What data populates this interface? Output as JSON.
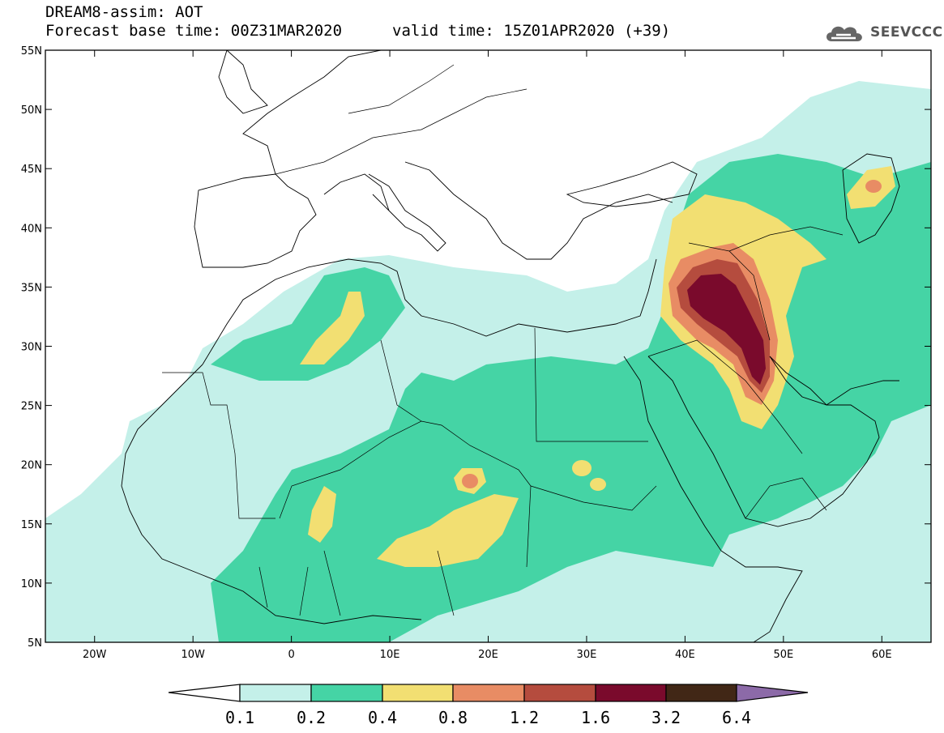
{
  "header": {
    "title": "DREAM8-assim: AOT",
    "base_time": "Forecast base time: 00Z31MAR2020",
    "valid_time": "valid time: 15Z01APR2020 (+39)"
  },
  "logo": {
    "text": "SEEVCCC",
    "icon": "cloud-logo-icon",
    "color": "#555555"
  },
  "map": {
    "lat_labels": [
      "55N",
      "50N",
      "45N",
      "40N",
      "35N",
      "30N",
      "25N",
      "20N",
      "15N",
      "10N",
      "5N"
    ],
    "lon_labels": [
      "20W",
      "10W",
      "0",
      "10E",
      "20E",
      "30E",
      "40E",
      "50E",
      "60E"
    ],
    "lat_values": [
      55,
      50,
      45,
      40,
      35,
      30,
      25,
      20,
      15,
      10,
      5
    ],
    "lon_values": [
      -20,
      -10,
      0,
      10,
      20,
      30,
      40,
      50,
      60
    ],
    "lon_range": [
      -25,
      65
    ],
    "lat_range": [
      5,
      55
    ],
    "variable": "AOT"
  },
  "legend": {
    "labels": [
      "0.1",
      "0.2",
      "0.4",
      "0.8",
      "1.2",
      "1.6",
      "3.2",
      "6.4"
    ],
    "colors": [
      "#ffffff",
      "#c4f0e9",
      "#45d4a5",
      "#f2df72",
      "#e88c64",
      "#b54c3e",
      "#7a0a2c",
      "#412716",
      "#8c6aa8"
    ]
  },
  "colors": {
    "c1": "#c4f0e9",
    "c2": "#45d4a5",
    "c3": "#f2df72",
    "c4": "#e88c64",
    "c5": "#b54c3e",
    "c6": "#7a0a2c"
  }
}
